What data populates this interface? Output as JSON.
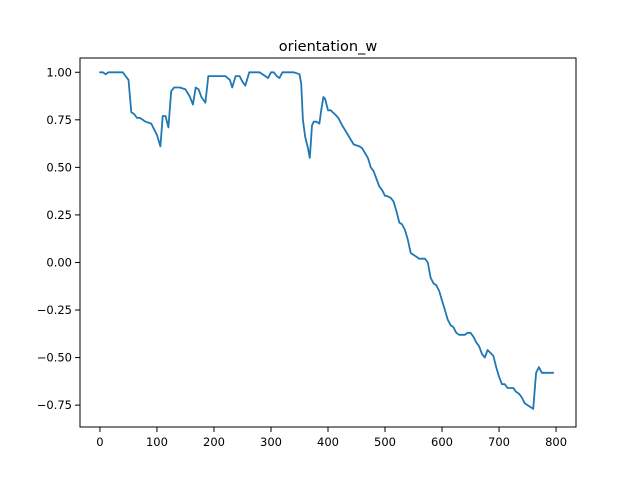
{
  "chart_data": {
    "type": "line",
    "title": "orientation_w",
    "xlabel": "",
    "ylabel": "",
    "xlim": [
      -35,
      835
    ],
    "ylim": [
      -0.865,
      1.075
    ],
    "xticks": [
      0,
      100,
      200,
      300,
      400,
      500,
      600,
      700,
      800
    ],
    "xtick_labels": [
      "0",
      "100",
      "200",
      "300",
      "400",
      "500",
      "600",
      "700",
      "800"
    ],
    "yticks": [
      -0.75,
      -0.5,
      -0.25,
      0.0,
      0.25,
      0.5,
      0.75,
      1.0
    ],
    "ytick_labels": [
      "−0.75",
      "−0.50",
      "−0.25",
      "0.00",
      "0.25",
      "0.50",
      "0.75",
      "1.00"
    ],
    "grid": false,
    "legend": "none",
    "series": [
      {
        "color": "#1f77b4",
        "x": [
          0,
          5,
          10,
          15,
          20,
          30,
          40,
          45,
          50,
          55,
          60,
          65,
          70,
          75,
          80,
          90,
          95,
          100,
          106,
          110,
          115,
          120,
          125,
          130,
          140,
          150,
          158,
          163,
          168,
          173,
          178,
          185,
          190,
          210,
          220,
          228,
          232,
          238,
          245,
          250,
          255,
          262,
          268,
          275,
          280,
          285,
          290,
          295,
          300,
          305,
          310,
          315,
          320,
          325,
          330,
          340,
          350,
          353,
          356,
          360,
          365,
          368,
          372,
          375,
          380,
          385,
          388,
          392,
          395,
          400,
          405,
          408,
          412,
          418,
          425,
          435,
          445,
          455,
          460,
          470,
          475,
          480,
          490,
          495,
          500,
          503,
          510,
          515,
          520,
          525,
          530,
          535,
          540,
          545,
          550,
          555,
          560,
          565,
          570,
          575,
          580,
          585,
          590,
          595,
          600,
          605,
          610,
          615,
          620,
          625,
          630,
          635,
          640,
          645,
          650,
          655,
          660,
          665,
          670,
          675,
          680,
          690,
          695,
          700,
          705,
          710,
          715,
          720,
          725,
          730,
          735,
          740,
          745,
          750,
          755,
          760,
          765,
          770,
          775,
          780,
          785,
          790,
          795
        ],
        "y": [
          1.0,
          1.0,
          0.99,
          1.0,
          1.0,
          1.0,
          1.0,
          0.98,
          0.96,
          0.79,
          0.78,
          0.76,
          0.76,
          0.75,
          0.74,
          0.73,
          0.7,
          0.67,
          0.61,
          0.77,
          0.77,
          0.71,
          0.9,
          0.92,
          0.92,
          0.91,
          0.87,
          0.83,
          0.92,
          0.91,
          0.87,
          0.84,
          0.98,
          0.98,
          0.98,
          0.96,
          0.92,
          0.98,
          0.98,
          0.95,
          0.93,
          1.0,
          1.0,
          1.0,
          1.0,
          0.99,
          0.98,
          0.97,
          1.0,
          1.0,
          0.98,
          0.97,
          1.0,
          1.0,
          1.0,
          1.0,
          0.99,
          0.94,
          0.75,
          0.66,
          0.6,
          0.55,
          0.72,
          0.74,
          0.74,
          0.73,
          0.8,
          0.87,
          0.86,
          0.8,
          0.8,
          0.79,
          0.78,
          0.76,
          0.72,
          0.67,
          0.62,
          0.61,
          0.6,
          0.55,
          0.5,
          0.48,
          0.4,
          0.38,
          0.35,
          0.35,
          0.34,
          0.32,
          0.27,
          0.21,
          0.2,
          0.17,
          0.12,
          0.05,
          0.04,
          0.03,
          0.02,
          0.02,
          0.02,
          0.0,
          -0.08,
          -0.11,
          -0.12,
          -0.15,
          -0.2,
          -0.25,
          -0.3,
          -0.33,
          -0.34,
          -0.37,
          -0.38,
          -0.38,
          -0.38,
          -0.37,
          -0.37,
          -0.39,
          -0.42,
          -0.44,
          -0.48,
          -0.5,
          -0.46,
          -0.49,
          -0.55,
          -0.6,
          -0.64,
          -0.64,
          -0.66,
          -0.66,
          -0.66,
          -0.68,
          -0.69,
          -0.71,
          -0.74,
          -0.75,
          -0.76,
          -0.77,
          -0.58,
          -0.55,
          -0.58,
          -0.58,
          -0.58,
          -0.58,
          -0.58
        ]
      }
    ]
  }
}
